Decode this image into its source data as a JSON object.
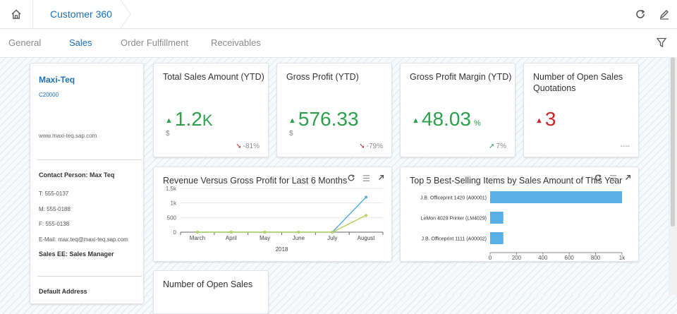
{
  "header": {
    "breadcrumb": "Customer 360"
  },
  "tabs": [
    {
      "label": "General"
    },
    {
      "label": "Sales"
    },
    {
      "label": "Order Fulfillment"
    },
    {
      "label": "Receivables"
    }
  ],
  "active_tab": "Sales",
  "profile": {
    "name": "Maxi-Teq",
    "customer_id": "C20000",
    "website": "www.maxi-teq.sap.com",
    "contact_person": "Contact Person: Max Teq",
    "phone": "T: 555-0137",
    "mobile": "M: 555-0188",
    "fax": "F: 555-0138",
    "email": "E-Mail: max.teq@maxi-teq.sap.com",
    "sales_employee": "Sales EE: Sales Manager",
    "default_address": "Default Address"
  },
  "kpis": [
    {
      "title": "Total Sales Amount (YTD)",
      "value": "1.2",
      "suffix": "K",
      "currency": "$",
      "trend": "up",
      "delta": "-81%",
      "delta_trend": "down"
    },
    {
      "title": "Gross Profit (YTD)",
      "value": "576.33",
      "currency": "$",
      "trend": "up",
      "delta": "-79%",
      "delta_trend": "down"
    },
    {
      "title": "Gross Profit Margin (YTD)",
      "value": "48.03",
      "unit": "%",
      "trend": "up",
      "delta": "7%",
      "delta_trend": "up"
    },
    {
      "title": "Number of Open Sales Quotations",
      "value": "3",
      "trend": "up_red",
      "delta": "----"
    }
  ],
  "revenue_chart": {
    "title": "Revenue Versus Gross Profit for Last 6 Months"
  },
  "top_items_chart": {
    "title": "Top 5 Best-Selling Items by Sales Amount of This Year"
  },
  "bottom_card": {
    "title": "Number of Open Sales"
  },
  "colors": {
    "accent": "#1a6fb5",
    "positive": "#2e9f4d",
    "negative": "#c8272c",
    "revenue_line": "#5aaee6",
    "profit_line": "#b8d45a",
    "bar": "#5aaee6"
  },
  "chart_data": [
    {
      "type": "line",
      "title": "Revenue Versus Gross Profit for Last 6 Months",
      "categories": [
        "March",
        "April",
        "May",
        "June",
        "July",
        "August"
      ],
      "xlabel": "2018",
      "y_ticks": [
        "0",
        "500",
        "1k",
        "1.5k"
      ],
      "ylim": [
        0,
        1500
      ],
      "series": [
        {
          "values": [
            0,
            0,
            0,
            0,
            0,
            1200
          ]
        },
        {
          "values": [
            0,
            0,
            0,
            0,
            0,
            576
          ]
        }
      ]
    },
    {
      "type": "bar",
      "orientation": "horizontal",
      "title": "Top 5 Best-Selling Items by Sales Amount of This Year",
      "categories": [
        "J.B. Officeprint 1420 (A00001)",
        "LeMon 4029 Printer (LM4029)",
        "J.B. Officeprint 1111 (A00002)"
      ],
      "values": [
        1000,
        100,
        100
      ],
      "x_ticks": [
        "0",
        "200",
        "400",
        "600",
        "800",
        "1k"
      ],
      "xlim": [
        0,
        1000
      ]
    }
  ]
}
